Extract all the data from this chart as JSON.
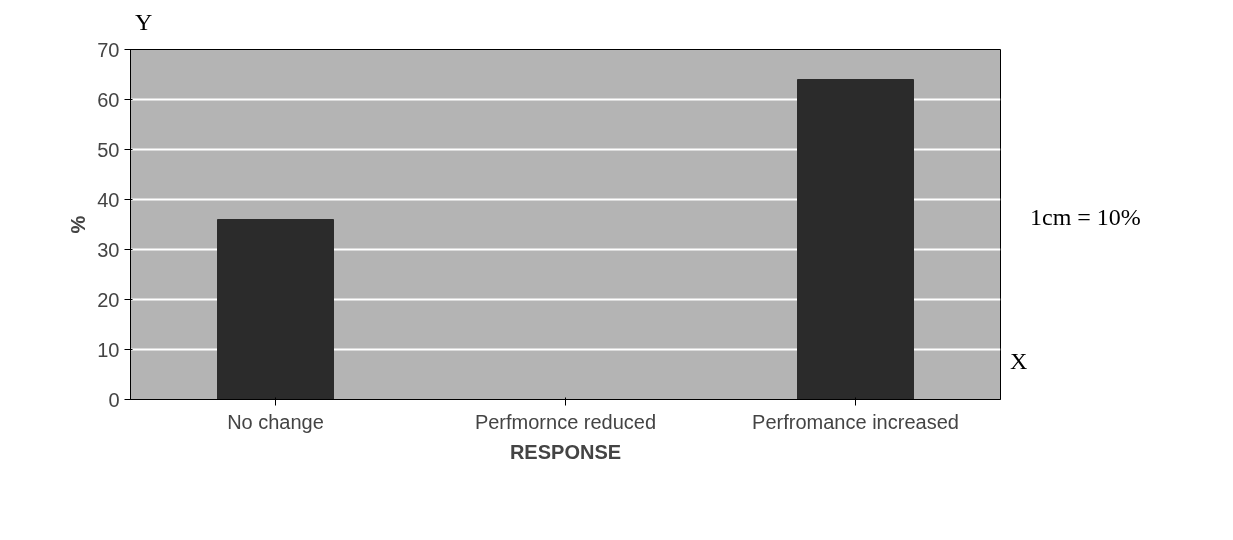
{
  "chart_data": {
    "type": "bar",
    "xlabel": "RESPONSE",
    "ylabel": "%",
    "categories": [
      "No change",
      "Perfmornce reduced",
      "Perfromance increased"
    ],
    "values": [
      36,
      0,
      64
    ],
    "color": "#2b2b2b",
    "ylim": [
      0,
      70
    ],
    "yticks": [
      0,
      10,
      20,
      30,
      40,
      50,
      60,
      70
    ],
    "grid": "y",
    "annotations": [
      "Y",
      "X",
      "1cm = 10%"
    ]
  }
}
